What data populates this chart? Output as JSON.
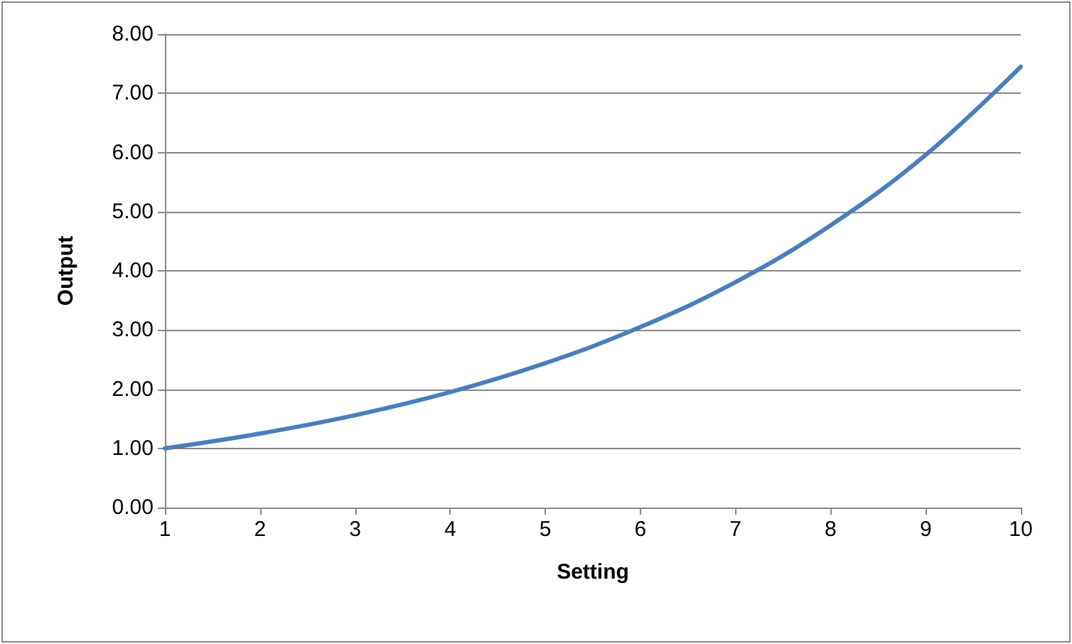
{
  "chart_data": {
    "type": "line",
    "xlabel": "Setting",
    "ylabel": "Output",
    "x": [
      1,
      2,
      3,
      4,
      5,
      6,
      7,
      8,
      9,
      10
    ],
    "series": [
      {
        "color": "#4a7ebb",
        "values": [
          1.0,
          1.25,
          1.56,
          1.95,
          2.44,
          3.05,
          3.81,
          4.77,
          5.96,
          7.45
        ]
      }
    ],
    "xlim": [
      1,
      10
    ],
    "xticks": [
      1,
      2,
      3,
      4,
      5,
      6,
      7,
      8,
      9,
      10
    ],
    "ylim": [
      0,
      8
    ],
    "yticks": [
      {
        "value": 0,
        "label": "0.00"
      },
      {
        "value": 1,
        "label": "1.00"
      },
      {
        "value": 2,
        "label": "2.00"
      },
      {
        "value": 3,
        "label": "3.00"
      },
      {
        "value": 4,
        "label": "4.00"
      },
      {
        "value": 5,
        "label": "5.00"
      },
      {
        "value": 6,
        "label": "6.00"
      },
      {
        "value": 7,
        "label": "7.00"
      },
      {
        "value": 8,
        "label": "8.00"
      }
    ],
    "grid": "y",
    "marker": "none",
    "line_style": "solid"
  }
}
